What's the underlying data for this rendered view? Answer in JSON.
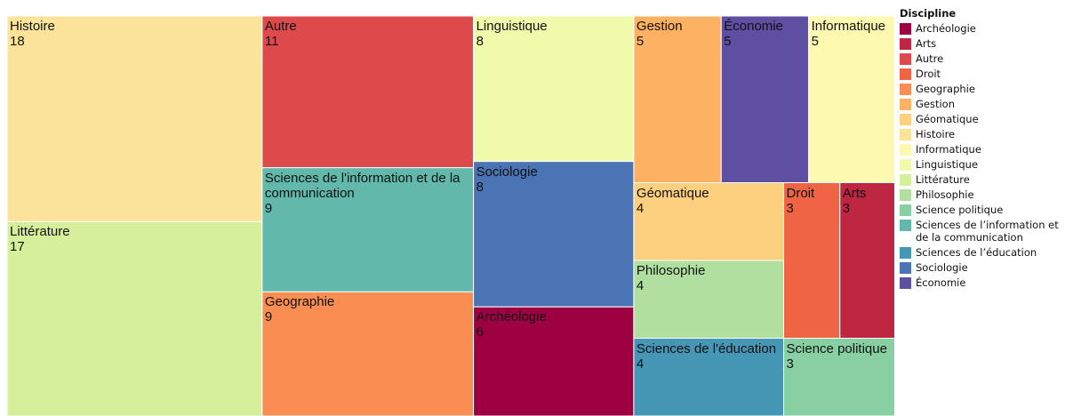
{
  "chart_data": {
    "type": "treemap",
    "categories": [
      "Histoire",
      "Littérature",
      "Autre",
      "Sciences de l'information et de la communication",
      "Geographie",
      "Linguistique",
      "Sociologie",
      "Archéologie",
      "Gestion",
      "Économie",
      "Informatique",
      "Géomatique",
      "Philosophie",
      "Sciences de l'éducation",
      "Droit",
      "Arts",
      "Science politique"
    ],
    "values": [
      18,
      17,
      11,
      9,
      9,
      8,
      8,
      6,
      5,
      5,
      5,
      4,
      4,
      4,
      3,
      3,
      3
    ],
    "colors": [
      "#fbe39a",
      "#d6ef9b",
      "#dc4a4c",
      "#62b8ab",
      "#f98e52",
      "#effaaa",
      "#4a74b3",
      "#9e0142",
      "#fdb162",
      "#5e4fa2",
      "#fdf9b0",
      "#fdd07f",
      "#b0df9f",
      "#4697b5",
      "#ee6445",
      "#be2641",
      "#88d0a4"
    ],
    "legend": {
      "title": "Discipline",
      "items": [
        {
          "name": "Archéologie",
          "color": "#9e0142"
        },
        {
          "name": "Arts",
          "color": "#be2641"
        },
        {
          "name": "Autre",
          "color": "#dc4a4c"
        },
        {
          "name": "Droit",
          "color": "#ee6445"
        },
        {
          "name": "Geographie",
          "color": "#f98e52"
        },
        {
          "name": "Gestion",
          "color": "#fdb162"
        },
        {
          "name": "Géomatique",
          "color": "#fdd07f"
        },
        {
          "name": "Histoire",
          "color": "#fbe39a"
        },
        {
          "name": "Informatique",
          "color": "#fdf9b0"
        },
        {
          "name": "Linguistique",
          "color": "#effaaa"
        },
        {
          "name": "Littérature",
          "color": "#d6ef9b"
        },
        {
          "name": "Philosophie",
          "color": "#b0df9f"
        },
        {
          "name": "Science politique",
          "color": "#88d0a4"
        },
        {
          "name": "Sciences de l’information et de la communication",
          "color": "#62b8ab"
        },
        {
          "name": "Sciences de l’éducation",
          "color": "#4697b5"
        },
        {
          "name": "Sociologie",
          "color": "#4a74b3"
        },
        {
          "name": "Économie",
          "color": "#5e4fa2"
        }
      ]
    }
  }
}
